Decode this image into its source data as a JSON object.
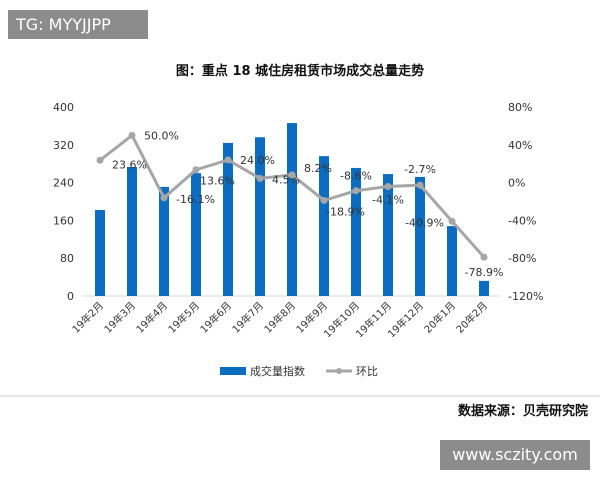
{
  "watermark_top": "TG: MYYJJPP",
  "watermark_bottom": "www.sczity.com",
  "source": "数据来源：贝壳研究院",
  "chart_data": {
    "type": "bar+line",
    "title": "图：重点 18 城住房租赁市场成交总量走势",
    "categories": [
      "19年2月",
      "19年3月",
      "19年4月",
      "19年5月",
      "19年6月",
      "19年7月",
      "19年8月",
      "19年9月",
      "19年10月",
      "19年11月",
      "19年12月",
      "20年1月",
      "20年2月"
    ],
    "series": [
      {
        "name": "成交量指数",
        "type": "bar",
        "axis": "left",
        "color": "#0b6cc0",
        "values": [
          182,
          273,
          231,
          260,
          324,
          336,
          366,
          296,
          271,
          258,
          252,
          148,
          32
        ]
      },
      {
        "name": "环比",
        "type": "line",
        "axis": "right",
        "color": "#a6a6a6",
        "values": [
          23.6,
          50.0,
          -16.1,
          13.6,
          24.0,
          4.5,
          8.2,
          -18.9,
          -8.6,
          -4.1,
          -2.7,
          -40.9,
          -78.9
        ],
        "labels": [
          "23.6%",
          "50.0%",
          "-16.1%",
          "13.6%",
          "24.0%",
          "4.5%",
          "8.2%",
          "-18.9%",
          "-8.6%",
          "-4.1%",
          "-2.7%",
          "-40.9%",
          "-78.9%"
        ]
      }
    ],
    "left_axis": {
      "ylim": [
        0,
        400
      ],
      "ticks": [
        "0",
        "80",
        "160",
        "240",
        "320",
        "400"
      ],
      "values": [
        0,
        80,
        160,
        240,
        320,
        400
      ]
    },
    "right_axis": {
      "ylim": [
        -120,
        80
      ],
      "ticks": [
        "-120%",
        "-80%",
        "-40%",
        "0%",
        "40%",
        "80%"
      ],
      "values": [
        -120,
        -80,
        -40,
        0,
        40,
        80
      ]
    },
    "grid": false,
    "legend": "bottom"
  }
}
